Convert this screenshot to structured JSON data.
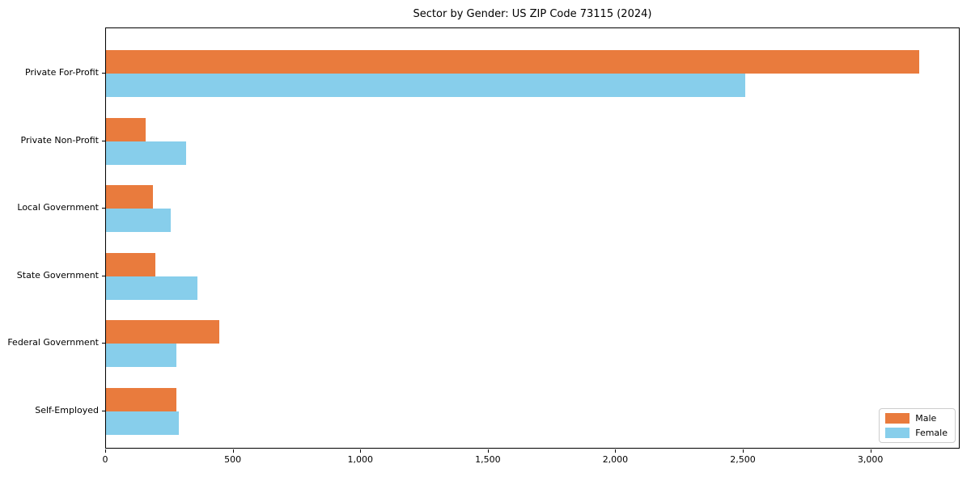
{
  "title": "Sector by Gender: US ZIP Code 73115 (2024)",
  "chart_data": {
    "type": "bar",
    "orientation": "horizontal",
    "title": "Sector by Gender: US ZIP Code 73115 (2024)",
    "xlabel": "",
    "ylabel": "",
    "categories": [
      "Private For-Profit",
      "Private Non-Profit",
      "Local Government",
      "State Government",
      "Federal Government",
      "Self-Employed"
    ],
    "series": [
      {
        "name": "Male",
        "color": "#E97B3D",
        "values": [
          3195,
          155,
          185,
          195,
          445,
          275
        ]
      },
      {
        "name": "Female",
        "color": "#87CEEB",
        "values": [
          2510,
          315,
          255,
          360,
          275,
          285
        ]
      }
    ],
    "xlim": [
      0,
      3350
    ],
    "xticks": [
      0,
      500,
      1000,
      1500,
      2000,
      2500,
      3000
    ],
    "xtick_labels": [
      "0",
      "500",
      "1,000",
      "1,500",
      "2,000",
      "2,500",
      "3,000"
    ],
    "grid": false,
    "legend_position": "lower right"
  },
  "legend": {
    "items": [
      {
        "label": "Male",
        "color": "#E97B3D"
      },
      {
        "label": "Female",
        "color": "#87CEEB"
      }
    ]
  }
}
